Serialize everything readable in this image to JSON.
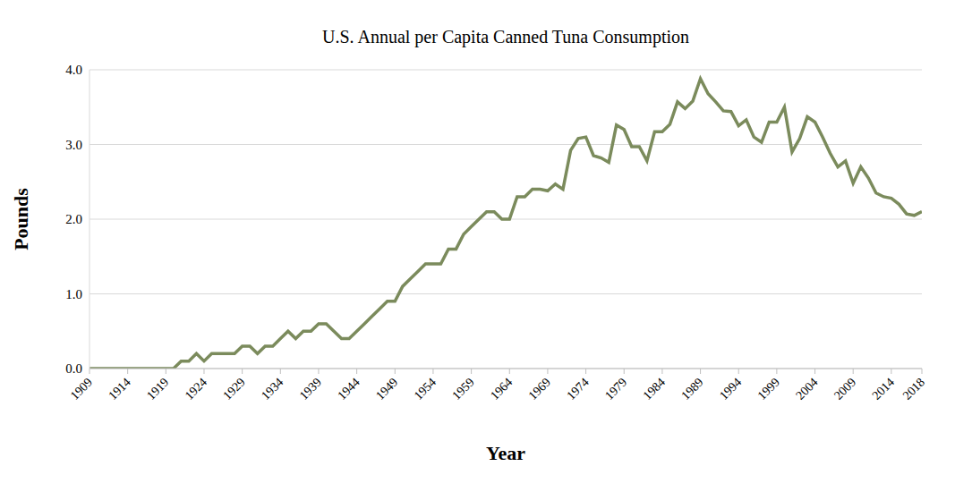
{
  "chart_data": {
    "type": "line",
    "title": "U.S. Annual per Capita Canned Tuna Consumption",
    "x_label": "Year",
    "y_label": "Pounds",
    "color": "#7b8b5c",
    "grid": true,
    "xlim": [
      1909,
      2018
    ],
    "xticks": [
      1909,
      1914,
      1919,
      1924,
      1929,
      1934,
      1939,
      1944,
      1949,
      1954,
      1959,
      1964,
      1969,
      1974,
      1979,
      1984,
      1989,
      1994,
      1999,
      2004,
      2009,
      2014,
      2018
    ],
    "ylim": [
      0,
      4
    ],
    "yticks": [
      {
        "value": 0,
        "label": "0.0"
      },
      {
        "value": 1,
        "label": "1.0"
      },
      {
        "value": 2,
        "label": "2.0"
      },
      {
        "value": 3,
        "label": "3.0"
      },
      {
        "value": 4,
        "label": "4.0"
      }
    ],
    "x": [
      1909,
      1910,
      1911,
      1912,
      1913,
      1914,
      1915,
      1916,
      1917,
      1918,
      1919,
      1920,
      1921,
      1922,
      1923,
      1924,
      1925,
      1926,
      1927,
      1928,
      1929,
      1930,
      1931,
      1932,
      1933,
      1934,
      1935,
      1936,
      1937,
      1938,
      1939,
      1940,
      1941,
      1942,
      1943,
      1944,
      1945,
      1946,
      1947,
      1948,
      1949,
      1950,
      1951,
      1952,
      1953,
      1954,
      1955,
      1956,
      1957,
      1958,
      1959,
      1960,
      1961,
      1962,
      1963,
      1964,
      1965,
      1966,
      1967,
      1968,
      1969,
      1970,
      1971,
      1972,
      1973,
      1974,
      1975,
      1976,
      1977,
      1978,
      1979,
      1980,
      1981,
      1982,
      1983,
      1984,
      1985,
      1986,
      1987,
      1988,
      1989,
      1990,
      1991,
      1992,
      1993,
      1994,
      1995,
      1996,
      1997,
      1998,
      1999,
      2000,
      2001,
      2002,
      2003,
      2004,
      2005,
      2006,
      2007,
      2008,
      2009,
      2010,
      2011,
      2012,
      2013,
      2014,
      2015,
      2016,
      2017,
      2018
    ],
    "values": [
      0,
      0,
      0,
      0,
      0,
      0,
      0,
      0,
      0,
      0,
      0,
      0,
      0.1,
      0.1,
      0.2,
      0.1,
      0.2,
      0.2,
      0.2,
      0.2,
      0.3,
      0.3,
      0.2,
      0.3,
      0.3,
      0.4,
      0.5,
      0.4,
      0.5,
      0.5,
      0.6,
      0.6,
      0.5,
      0.4,
      0.4,
      0.5,
      0.6,
      0.7,
      0.8,
      0.9,
      0.9,
      1.1,
      1.2,
      1.3,
      1.4,
      1.4,
      1.4,
      1.6,
      1.6,
      1.8,
      1.9,
      2.0,
      2.1,
      2.1,
      2.0,
      2.0,
      2.3,
      2.3,
      2.4,
      2.4,
      2.38,
      2.47,
      2.4,
      2.92,
      3.08,
      3.1,
      2.85,
      2.82,
      2.76,
      3.26,
      3.2,
      2.97,
      2.97,
      2.78,
      3.17,
      3.17,
      3.27,
      3.57,
      3.48,
      3.58,
      3.88,
      3.68,
      3.57,
      3.45,
      3.44,
      3.25,
      3.33,
      3.1,
      3.03,
      3.3,
      3.3,
      3.5,
      2.9,
      3.08,
      3.37,
      3.3,
      3.1,
      2.88,
      2.7,
      2.78,
      2.48,
      2.7,
      2.55,
      2.35,
      2.3,
      2.28,
      2.2,
      2.07,
      2.05,
      2.1
    ]
  }
}
